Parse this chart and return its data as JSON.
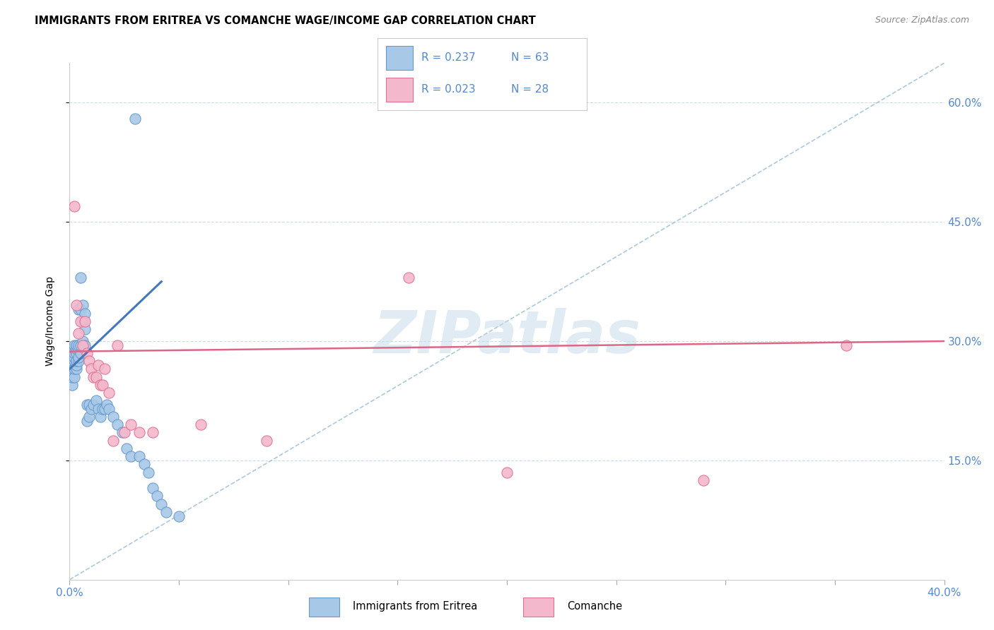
{
  "title": "IMMIGRANTS FROM ERITREA VS COMANCHE WAGE/INCOME GAP CORRELATION CHART",
  "source": "Source: ZipAtlas.com",
  "ylabel": "Wage/Income Gap",
  "ytick_vals": [
    0.15,
    0.3,
    0.45,
    0.6
  ],
  "ytick_labels": [
    "15.0%",
    "30.0%",
    "45.0%",
    "60.0%"
  ],
  "xmin": 0.0,
  "xmax": 0.4,
  "ymin": 0.0,
  "ymax": 0.65,
  "legend_eritrea_R": "0.237",
  "legend_eritrea_N": "63",
  "legend_comanche_R": "0.023",
  "legend_comanche_N": "28",
  "color_eritrea_fill": "#a8c8e8",
  "color_eritrea_edge": "#6699cc",
  "color_comanche_fill": "#f4b8cc",
  "color_comanche_edge": "#e07090",
  "color_eritrea_line": "#4477bb",
  "color_comanche_line": "#dd6688",
  "color_diagonal": "#99bbd4",
  "color_grid": "#ccddee",
  "watermark_color": "#c8dcea",
  "eritrea_x": [
    0.001,
    0.001,
    0.001,
    0.001,
    0.001,
    0.001,
    0.001,
    0.001,
    0.002,
    0.002,
    0.002,
    0.002,
    0.002,
    0.002,
    0.002,
    0.003,
    0.003,
    0.003,
    0.003,
    0.003,
    0.003,
    0.004,
    0.004,
    0.004,
    0.004,
    0.004,
    0.005,
    0.005,
    0.005,
    0.005,
    0.006,
    0.006,
    0.006,
    0.007,
    0.007,
    0.007,
    0.008,
    0.008,
    0.009,
    0.009,
    0.01,
    0.011,
    0.012,
    0.013,
    0.014,
    0.015,
    0.016,
    0.017,
    0.018,
    0.02,
    0.022,
    0.024,
    0.026,
    0.028,
    0.03,
    0.032,
    0.034,
    0.036,
    0.038,
    0.04,
    0.042,
    0.044,
    0.05
  ],
  "eritrea_y": [
    0.245,
    0.255,
    0.265,
    0.27,
    0.275,
    0.28,
    0.285,
    0.29,
    0.255,
    0.265,
    0.275,
    0.28,
    0.285,
    0.29,
    0.295,
    0.265,
    0.27,
    0.275,
    0.285,
    0.29,
    0.295,
    0.275,
    0.28,
    0.29,
    0.295,
    0.34,
    0.285,
    0.295,
    0.34,
    0.38,
    0.3,
    0.325,
    0.345,
    0.295,
    0.315,
    0.335,
    0.2,
    0.22,
    0.205,
    0.22,
    0.215,
    0.22,
    0.225,
    0.215,
    0.205,
    0.215,
    0.215,
    0.22,
    0.215,
    0.205,
    0.195,
    0.185,
    0.165,
    0.155,
    0.58,
    0.155,
    0.145,
    0.135,
    0.115,
    0.105,
    0.095,
    0.085,
    0.08
  ],
  "comanche_x": [
    0.002,
    0.003,
    0.004,
    0.005,
    0.006,
    0.007,
    0.008,
    0.009,
    0.01,
    0.011,
    0.012,
    0.013,
    0.014,
    0.015,
    0.016,
    0.018,
    0.02,
    0.022,
    0.025,
    0.028,
    0.032,
    0.038,
    0.06,
    0.09,
    0.155,
    0.2,
    0.29,
    0.355
  ],
  "comanche_y": [
    0.47,
    0.345,
    0.31,
    0.325,
    0.295,
    0.325,
    0.285,
    0.275,
    0.265,
    0.255,
    0.255,
    0.27,
    0.245,
    0.245,
    0.265,
    0.235,
    0.175,
    0.295,
    0.185,
    0.195,
    0.185,
    0.185,
    0.195,
    0.175,
    0.38,
    0.135,
    0.125,
    0.295
  ],
  "eritrea_line_x0": 0.0,
  "eritrea_line_y0": 0.265,
  "eritrea_line_x1": 0.042,
  "eritrea_line_y1": 0.375,
  "comanche_line_x0": 0.0,
  "comanche_line_y0": 0.287,
  "comanche_line_x1": 0.4,
  "comanche_line_y1": 0.3
}
